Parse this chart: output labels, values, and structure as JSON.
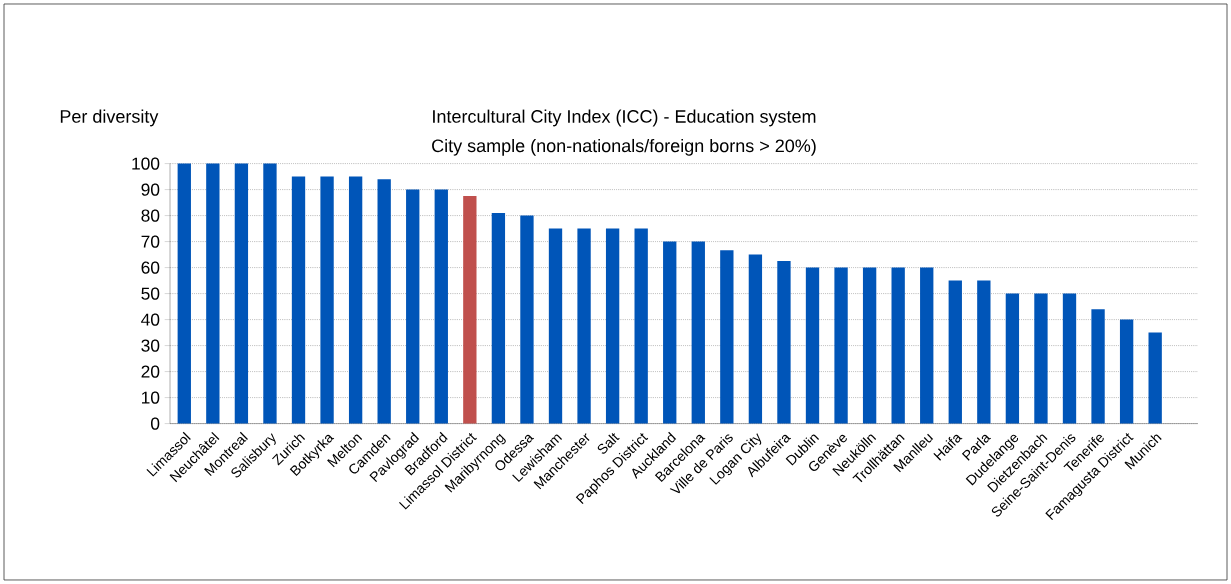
{
  "chart_data": {
    "type": "bar",
    "title": "Intercultural City Index (ICC) - Education system",
    "subtitle": "City sample (non-nationals/foreign borns > 20%)",
    "ylabel": "Per diversity",
    "categories": [
      "Limassol",
      "Neuchâtel",
      "Montreal",
      "Salisbury",
      "Zurich",
      "Botkyrka",
      "Melton",
      "Camden",
      "Pavlograd",
      "Bradford",
      "Limassol District",
      "Maribyrnong",
      "Odessa",
      "Lewisham",
      "Manchester",
      "Salt",
      "Paphos District",
      "Auckland",
      "Barcelona",
      "Ville de Paris",
      "Logan City",
      "Albufeira",
      "Dublin",
      "Genève",
      "Neukölln",
      "Trollhättan",
      "Manlleu",
      "Haifa",
      "Parla",
      "Dudelange",
      "Dietzenbach",
      "Seine-Saint-Denis",
      "Tenerife",
      "Famagusta District",
      "Munich",
      null
    ],
    "values": [
      100,
      100,
      100,
      100,
      95,
      95,
      95,
      94,
      90,
      90,
      87.5,
      81,
      80,
      75,
      75,
      75,
      75,
      70,
      70,
      66.7,
      65,
      62.5,
      60,
      60,
      60,
      60,
      60,
      55,
      55,
      50,
      50,
      50,
      44,
      40,
      35,
      null
    ],
    "colors": [
      "#0055b8",
      "#0055b8",
      "#0055b8",
      "#0055b8",
      "#0055b8",
      "#0055b8",
      "#0055b8",
      "#0055b8",
      "#0055b8",
      "#0055b8",
      "#c0504d",
      "#0055b8",
      "#0055b8",
      "#0055b8",
      "#0055b8",
      "#0055b8",
      "#0055b8",
      "#0055b8",
      "#0055b8",
      "#0055b8",
      "#0055b8",
      "#0055b8",
      "#0055b8",
      "#0055b8",
      "#0055b8",
      "#0055b8",
      "#0055b8",
      "#0055b8",
      "#0055b8",
      "#0055b8",
      "#0055b8",
      "#0055b8",
      "#0055b8",
      "#0055b8",
      "#0055b8",
      "#0055b8"
    ],
    "ylim": [
      0,
      100
    ],
    "yticks": [
      0,
      10,
      20,
      30,
      40,
      50,
      60,
      70,
      80,
      90,
      100
    ],
    "grid": "y"
  }
}
